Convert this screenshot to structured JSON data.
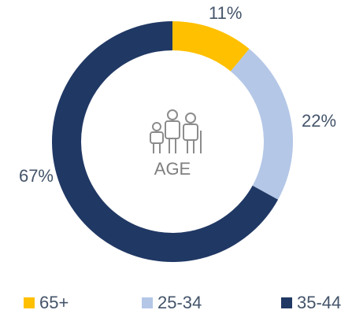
{
  "chart_data": {
    "type": "donut",
    "center_label": "AGE",
    "categories": [
      "65+",
      "25-34",
      "35-44"
    ],
    "values": [
      11,
      22,
      67
    ],
    "value_labels": [
      "11%",
      "22%",
      "67%"
    ],
    "colors": [
      "#FFC000",
      "#B4C7E7",
      "#203864"
    ],
    "legend": "bottom"
  }
}
